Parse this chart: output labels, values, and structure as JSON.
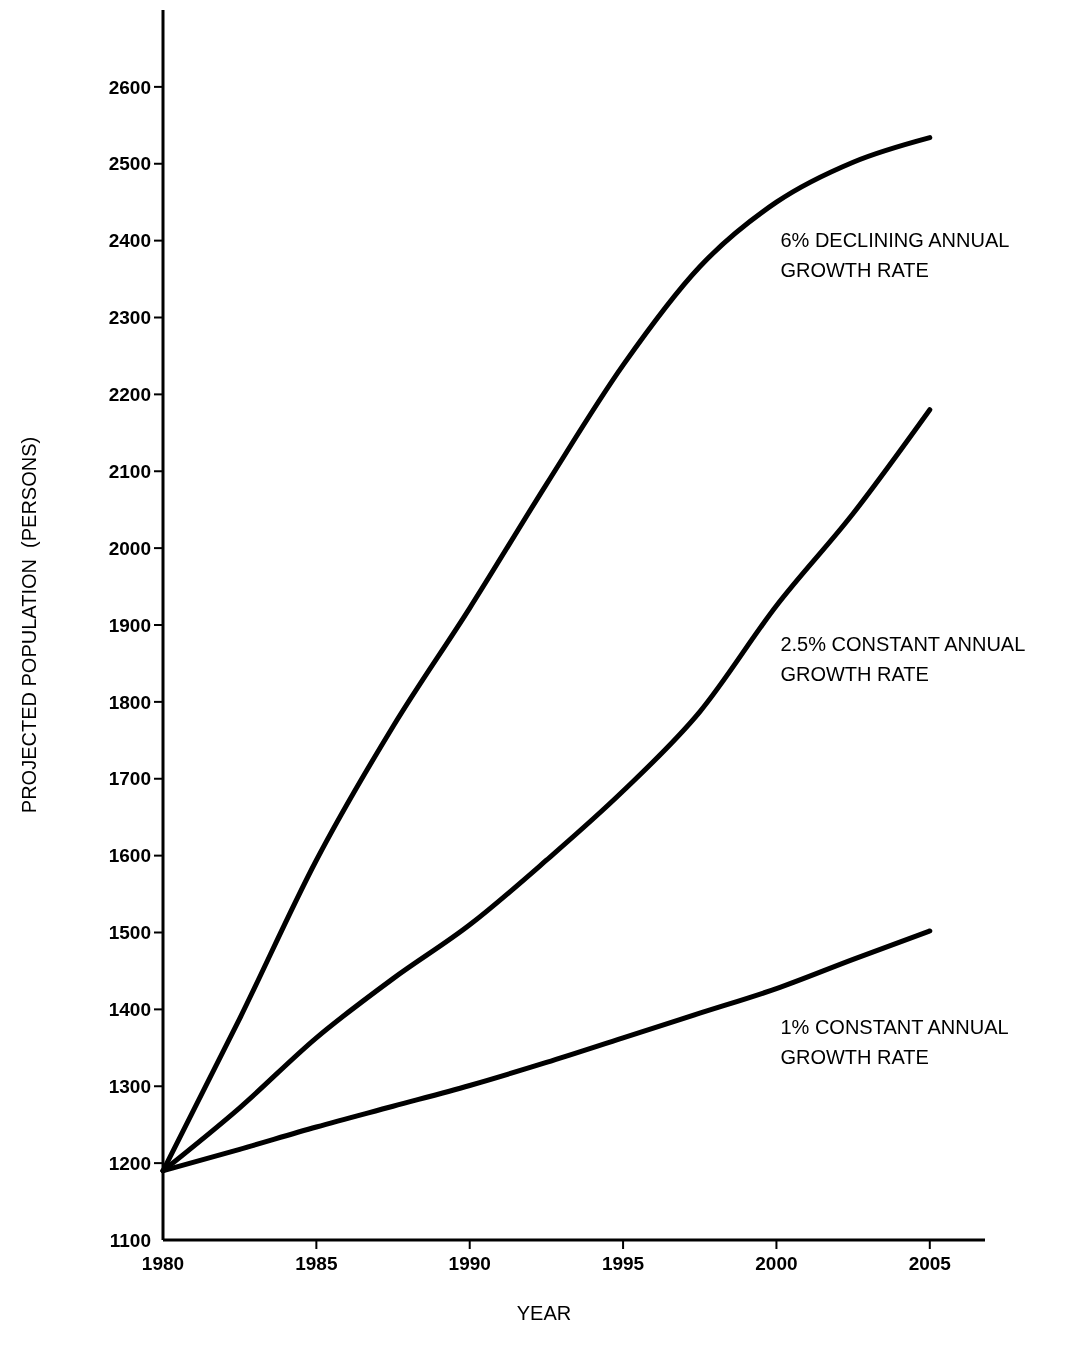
{
  "chart_data": {
    "type": "line",
    "xlabel": "YEAR",
    "ylabel": "PROJECTED POPULATION  (PERSONS)",
    "x": [
      1980,
      1982.5,
      1985,
      1987.5,
      1990,
      1992.5,
      1995,
      1997.5,
      2000,
      2002.5,
      2005
    ],
    "series": [
      {
        "name": "6% DECLINING ANNUAL GROWTH RATE",
        "color": "#000000",
        "values": [
          1190,
          1388,
          1594,
          1768,
          1922,
          2083,
          2238,
          2366,
          2450,
          2502,
          2534
        ]
      },
      {
        "name": "2.5% CONSTANT ANNUAL GROWTH RATE",
        "color": "#000000",
        "values": [
          1190,
          1272,
          1363,
          1440,
          1510,
          1594,
          1684,
          1787,
          1925,
          2045,
          2180
        ]
      },
      {
        "name": "1% CONSTANT ANNUAL GROWTH RATE",
        "color": "#000000",
        "values": [
          1190,
          1218,
          1247,
          1274,
          1301,
          1331,
          1363,
          1395,
          1427,
          1465,
          1502
        ]
      }
    ],
    "xlim": [
      1980,
      2006.8
    ],
    "xticks": [
      1980,
      1985,
      1990,
      1995,
      2000,
      2005
    ],
    "ylim": [
      1100,
      2700
    ],
    "yticks": [
      1100,
      1200,
      1300,
      1400,
      1500,
      1600,
      1700,
      1800,
      1900,
      2000,
      2100,
      2200,
      2300,
      2400,
      2500,
      2600
    ],
    "grid": false,
    "marker": "none",
    "line_style": "solid"
  }
}
